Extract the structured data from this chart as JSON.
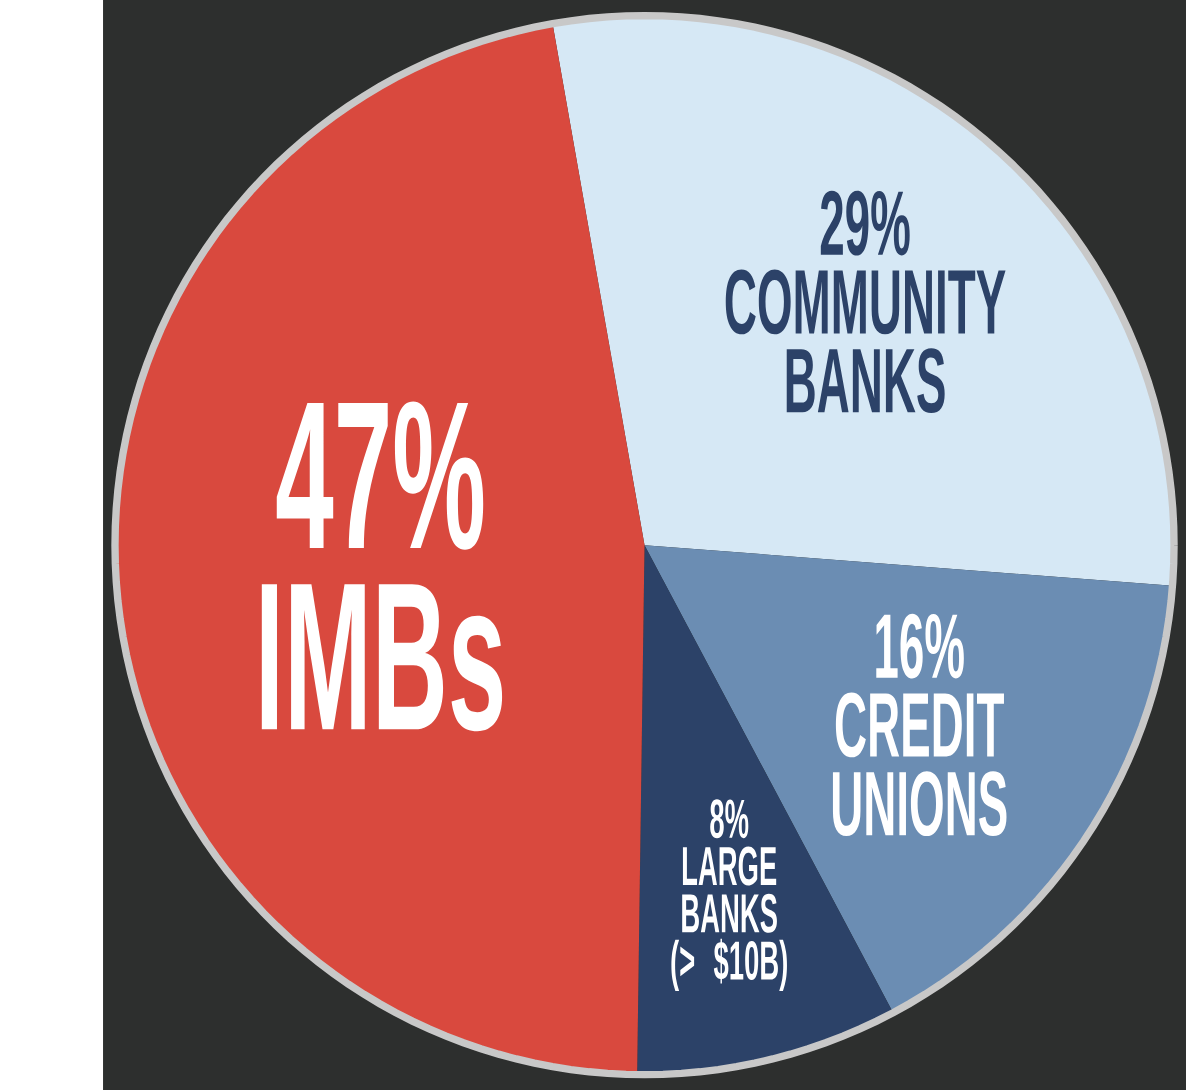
{
  "chart_data": {
    "type": "pie",
    "categories": [
      "COMMUNITY BANKS",
      "CREDIT UNIONS",
      "LARGE BANKS (> $10B)",
      "IMBs"
    ],
    "values": [
      29,
      16,
      8,
      47
    ],
    "value_labels": [
      "29%",
      "16%",
      "8%",
      "47%"
    ],
    "colors": [
      "#d6e8f5",
      "#6b8db3",
      "#2c4268",
      "#d9493e"
    ]
  }
}
